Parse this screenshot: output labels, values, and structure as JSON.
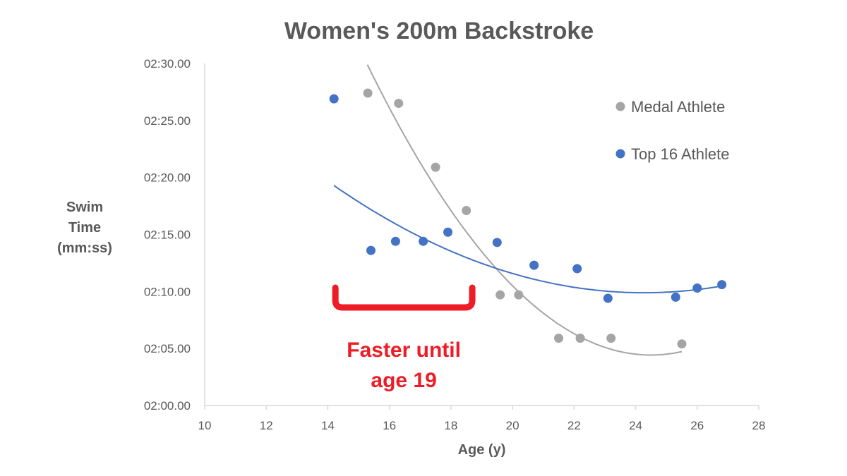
{
  "chart_data": {
    "type": "scatter",
    "title": "Women's 200m Backstroke",
    "xlabel": "Age (y)",
    "ylabel": [
      "Swim",
      "Time",
      "(mm:ss)"
    ],
    "xlim": [
      10,
      28
    ],
    "xticks": [
      10,
      12,
      14,
      16,
      18,
      20,
      22,
      24,
      26,
      28
    ],
    "ylim_seconds": [
      120,
      150
    ],
    "yticks": [
      {
        "seconds": 150,
        "label": "02:30.00"
      },
      {
        "seconds": 145,
        "label": "02:25.00"
      },
      {
        "seconds": 140,
        "label": "02:20.00"
      },
      {
        "seconds": 135,
        "label": "02:15.00"
      },
      {
        "seconds": 130,
        "label": "02:10.00"
      },
      {
        "seconds": 125,
        "label": "02:05.00"
      },
      {
        "seconds": 120,
        "label": "02:00.00"
      }
    ],
    "legend_position": "top-right",
    "series": [
      {
        "name": "Medal Athlete",
        "color": "#a5a5a5",
        "x": [
          15.3,
          16.3,
          17.5,
          18.5,
          19.6,
          20.2,
          21.5,
          22.2,
          23.2,
          25.5
        ],
        "y": [
          147.4,
          146.5,
          140.9,
          137.1,
          129.7,
          129.7,
          125.9,
          125.9,
          125.9,
          125.4
        ],
        "trend": {
          "x_range": [
            15.2,
            25.5
          ],
          "coeffs": [
            0.3,
            -14.7,
            304.5
          ]
        }
      },
      {
        "name": "Top 16 Athlete",
        "color": "#4472c4",
        "x": [
          14.2,
          15.4,
          16.2,
          17.1,
          17.9,
          19.5,
          20.7,
          22.1,
          23.1,
          25.3,
          26.0,
          26.8
        ],
        "y": [
          146.9,
          133.6,
          134.4,
          134.4,
          135.2,
          134.3,
          132.3,
          132.0,
          129.4,
          129.5,
          130.3,
          130.6
        ],
        "trend": {
          "x_range": [
            14.2,
            26.8
          ],
          "coeffs": [
            0.0927,
            -4.5,
            184.5
          ]
        }
      }
    ],
    "annotation": {
      "lines": [
        "Faster until",
        "age 19"
      ],
      "color": "#ee1c25",
      "bracket_x_range": [
        14.2,
        18.6
      ],
      "bracket_y": 128.6
    }
  }
}
